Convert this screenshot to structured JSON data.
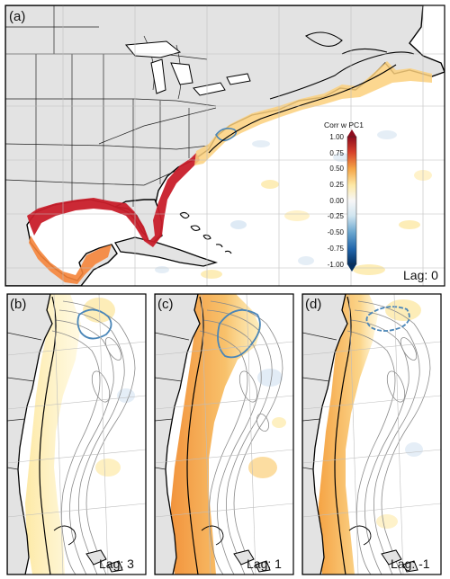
{
  "panels": [
    {
      "label": "(a)",
      "lag": "Lag: 0"
    },
    {
      "label": "(b)",
      "lag": "Lag: 3"
    },
    {
      "label": "(c)",
      "lag": "Lag: 1"
    },
    {
      "label": "(d)",
      "lag": "Lag: -1"
    }
  ],
  "colorbar": {
    "title": "Corr w PC1",
    "ticks": [
      "1.00",
      "0.75",
      "0.50",
      "0.25",
      "0.00",
      "-0.25",
      "-0.50",
      "-0.75",
      "-1.00"
    ],
    "colors": {
      "high": "#b2182b",
      "mid": "#f7f7f7",
      "low": "#2166ac"
    }
  },
  "colors": {
    "land": "#e3e3e3",
    "coast": "#000000",
    "grid": "#c8c8c8",
    "contour_blue": "#4a86b8",
    "positive_weak": "#fde9a6",
    "positive_mid": "#f5a445",
    "positive_strong": "#c81e2a"
  }
}
